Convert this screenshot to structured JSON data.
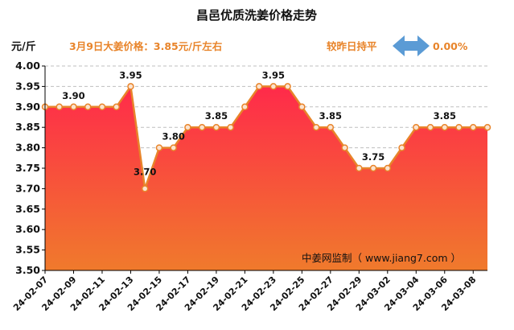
{
  "chart_data": {
    "type": "area",
    "title": "昌邑优质洗姜价格走势",
    "unit_label": "元/斤",
    "headline": "3月9日大姜价格：3.85元/斤左右",
    "change_text": "较昨日持平",
    "change_value": "0.00%",
    "watermark": "中姜网监制（ www.jiang7.com ）",
    "ylim": [
      3.5,
      4.0
    ],
    "y_ticks": [
      "3.50",
      "3.55",
      "3.60",
      "3.65",
      "3.70",
      "3.75",
      "3.80",
      "3.85",
      "3.90",
      "3.95",
      "4.00"
    ],
    "x_tick_labels": [
      "24-02-07",
      "24-02-09",
      "24-02-11",
      "24-02-13",
      "24-02-15",
      "24-02-17",
      "24-02-19",
      "24-02-21",
      "24-02-23",
      "24-02-25",
      "24-02-27",
      "24-02-29",
      "24-03-02",
      "24-03-04",
      "24-03-06",
      "24-03-08"
    ],
    "x": [
      "24-02-07",
      "24-02-08",
      "24-02-09",
      "24-02-10",
      "24-02-11",
      "24-02-12",
      "24-02-13",
      "24-02-14",
      "24-02-15",
      "24-02-16",
      "24-02-17",
      "24-02-18",
      "24-02-19",
      "24-02-20",
      "24-02-21",
      "24-02-22",
      "24-02-23",
      "24-02-24",
      "24-02-25",
      "24-02-26",
      "24-02-27",
      "24-02-28",
      "24-02-29",
      "24-03-01",
      "24-03-02",
      "24-03-03",
      "24-03-04",
      "24-03-05",
      "24-03-06",
      "24-03-07",
      "24-03-08",
      "24-03-09"
    ],
    "values": [
      3.9,
      3.9,
      3.9,
      3.9,
      3.9,
      3.9,
      3.95,
      3.7,
      3.8,
      3.8,
      3.85,
      3.85,
      3.85,
      3.85,
      3.9,
      3.95,
      3.95,
      3.95,
      3.9,
      3.85,
      3.85,
      3.8,
      3.75,
      3.75,
      3.75,
      3.8,
      3.85,
      3.85,
      3.85,
      3.85,
      3.85,
      3.85
    ],
    "data_labels": [
      {
        "index": 2,
        "text": "3.90"
      },
      {
        "index": 6,
        "text": "3.95"
      },
      {
        "index": 7,
        "text": "3.70"
      },
      {
        "index": 9,
        "text": "3.80"
      },
      {
        "index": 12,
        "text": "3.85"
      },
      {
        "index": 16,
        "text": "3.95"
      },
      {
        "index": 20,
        "text": "3.85"
      },
      {
        "index": 23,
        "text": "3.75"
      },
      {
        "index": 28,
        "text": "3.85"
      }
    ],
    "grid": true,
    "colors": {
      "line": "#e8842a",
      "fill_top": "#ff2a4a",
      "fill_bottom": "#f07a2c",
      "headline": "#e8842a",
      "arrow": "#5b9bd5",
      "grid": "#bfbfbf"
    }
  }
}
